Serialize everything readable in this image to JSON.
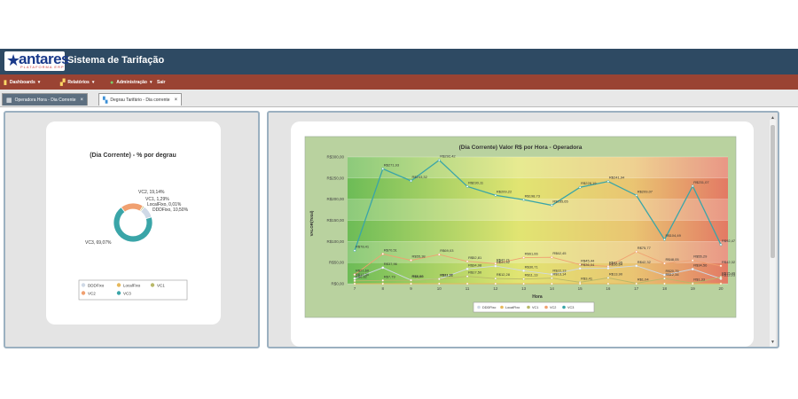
{
  "brand": {
    "logo_text": "antares",
    "logo_sub": "PLATAFORMA ERP",
    "title": "Sistema de Tarifação"
  },
  "menu": [
    {
      "label": "Dashboards",
      "icon": "chart-icon"
    },
    {
      "label": "Relatórios",
      "icon": "report-icon"
    },
    {
      "label": "Administração",
      "icon": "admin-icon"
    },
    {
      "label": "Sair",
      "icon": ""
    }
  ],
  "tabs": [
    {
      "label": "Operadora Hora - Dia Corrente",
      "active": false,
      "close": "×"
    },
    {
      "label": "Degrau Tarifário - Dia corrente",
      "active": true,
      "close": "×"
    }
  ],
  "colors": {
    "topbar": "#2e4a63",
    "menubar": "#9a4333",
    "DDDFixo": "#cfd9e6",
    "LocalFixo": "#e6b85c",
    "VC1": "#b8b86a",
    "VC2": "#f0a070",
    "VC3": "#3aa5a8"
  },
  "chart_data": [
    {
      "type": "pie",
      "title": "(Dia Corrente) - % por degrau",
      "categories": [
        "VC2",
        "VC1",
        "LocalFixo",
        "DDDFixo",
        "VC3"
      ],
      "values": [
        19.14,
        1.29,
        0.01,
        10.5,
        69.07
      ],
      "slice_labels": [
        "VC2, 19,14%",
        "VC1, 1,29%",
        "LocalFixo, 0,01%",
        "DDDFixo, 10,50%",
        "VC3, 69,07%"
      ],
      "legend": [
        "DDDFixo",
        "LocalFixo",
        "VC1",
        "VC2",
        "VC3"
      ]
    },
    {
      "type": "line",
      "title": "(Dia Corrente) Valor R$ por Hora - Operadora",
      "xlabel": "Hora",
      "ylabel": "VALOR(Total)",
      "x": [
        "7",
        "8",
        "9",
        "10",
        "11",
        "12",
        "13",
        "14",
        "15",
        "16",
        "17",
        "18",
        "19",
        "20"
      ],
      "yticks": [
        "R$0,00",
        "R$50,00",
        "R$100,00",
        "R$150,00",
        "R$200,00",
        "R$250,00",
        "R$300,00"
      ],
      "ylim": [
        0,
        300
      ],
      "series": [
        {
          "name": "VC3",
          "values": [
            78.41,
            271.93,
            243.32,
            292.42,
            230.11,
            209.22,
            198.73,
            185.65,
            228.19,
            241.94,
            209.07,
            104.49,
            231.07,
            92.47
          ],
          "labels": [
            "R$78,41",
            "R$271,93",
            "R$243,32",
            "R$292,42",
            "R$230,11",
            "R$209,22",
            "R$198,73",
            "R$185,65",
            "R$228,19",
            "R$241,94",
            "R$209,07",
            "R$104,49",
            "R$231,07",
            "R$92,47"
          ]
        },
        {
          "name": "VC2",
          "values": [
            21.6,
            70.51,
            55.38,
            69.03,
            52.81,
            47.71,
            61.66,
            62.45,
            45.44,
            41.05,
            75.77,
            48.05,
            55.29,
            42.32
          ],
          "labels": [
            "R$21,60",
            "R$70,51",
            "R$55,38",
            "R$69,03",
            "R$52,81",
            "R$47,71",
            "R$61,66",
            "R$62,45",
            "R$45,44",
            "R$41,05",
            "R$75,77",
            "R$48,05",
            "R$55,29",
            "R$42,32"
          ]
        },
        {
          "name": "DDDFixo",
          "values": [
            12.3,
            37.96,
            8.6,
            11.32,
            34.98,
            41.82,
            30.71,
            22.13,
            36.04,
            36.64,
            42.32,
            20.75,
            34.56,
            12.03
          ],
          "labels": [
            "R$12,30",
            "R$37,96",
            "R$8,60",
            "R$11,32",
            "R$34,98",
            "R$41,82",
            "R$30,71",
            "R$22,13",
            "R$36,04",
            "R$36,64",
            "R$42,32",
            "R$20,75",
            "R$34,56",
            "R$12,03"
          ]
        },
        {
          "name": "VC1",
          "values": [
            6.82,
            7.79,
            8.08,
            11.11,
            17.5,
            12.28,
            11.13,
            13.14,
            3.41,
            13.9,
            1.04,
            12.34,
            1.33,
            15.49
          ],
          "labels": [
            "R$6,82",
            "R$7,79",
            "R$8,08",
            "R$11,11",
            "R$17,50",
            "R$12,28",
            "R$11,13",
            "R$13,14",
            "R$3,41",
            "R$13,90",
            "R$1,04",
            "R$12,34",
            "R$1,33",
            "R$15,49"
          ]
        },
        {
          "name": "LocalFixo",
          "values": [
            0,
            0,
            0,
            0,
            0,
            0,
            0,
            0,
            0,
            0,
            0,
            0,
            0,
            0.01
          ],
          "labels": []
        }
      ],
      "legend": [
        "DDDFixo",
        "LocalFixo",
        "VC1",
        "VC2",
        "VC3"
      ]
    }
  ]
}
